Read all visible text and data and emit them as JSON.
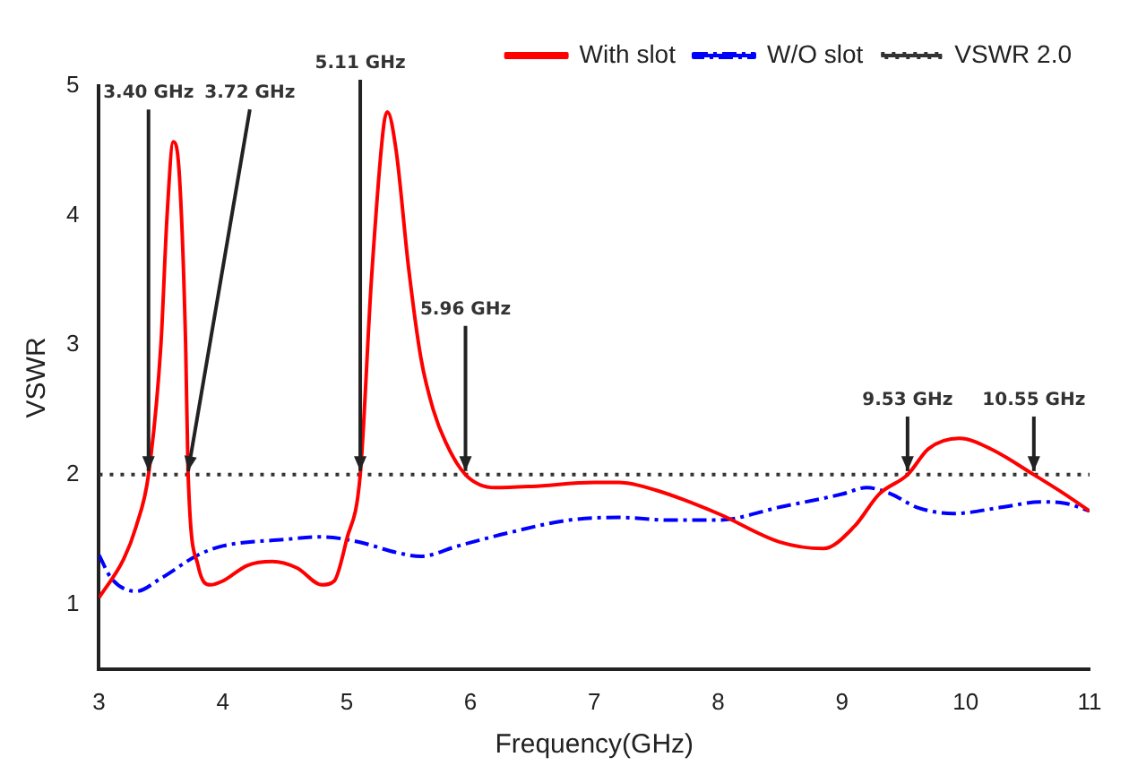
{
  "chart_data": {
    "type": "line",
    "xlabel": "Frequency(GHz)",
    "ylabel": "VSWR",
    "xlim": [
      3,
      11
    ],
    "xticks": [
      3,
      4,
      5,
      6,
      7,
      8,
      9,
      10,
      11
    ],
    "ylim": [
      0.5,
      5
    ],
    "yticks": [
      1,
      2,
      3,
      4,
      5
    ],
    "grid": false,
    "legend": "top right",
    "marker": "none",
    "series": [
      {
        "name": "With slot",
        "color": "#ff0000",
        "line_style": "solid",
        "x": [
          3.0,
          3.2,
          3.3,
          3.4,
          3.5,
          3.55,
          3.6,
          3.65,
          3.7,
          3.72,
          3.8,
          3.9,
          4.0,
          4.2,
          4.4,
          4.6,
          4.8,
          4.9,
          5.0,
          5.11,
          5.2,
          5.3,
          5.33,
          5.4,
          5.5,
          5.6,
          5.7,
          5.8,
          5.96,
          6.2,
          6.5,
          7.0,
          7.2,
          7.5,
          8.0,
          8.5,
          8.85,
          9.1,
          9.3,
          9.53,
          9.7,
          9.95,
          10.2,
          10.55,
          10.8,
          11.0
        ],
        "values": [
          1.05,
          1.35,
          1.6,
          2.0,
          3.0,
          4.0,
          4.57,
          4.3,
          3.0,
          2.0,
          1.3,
          1.15,
          1.18,
          1.3,
          1.33,
          1.28,
          1.15,
          1.18,
          1.5,
          2.0,
          3.5,
          4.7,
          4.8,
          4.5,
          3.6,
          2.9,
          2.5,
          2.25,
          2.0,
          1.9,
          1.91,
          1.94,
          1.94,
          1.88,
          1.7,
          1.48,
          1.43,
          1.6,
          1.85,
          2.0,
          2.2,
          2.28,
          2.2,
          2.0,
          1.85,
          1.72
        ]
      },
      {
        "name": "W/O slot",
        "color": "#0000ff",
        "line_style": "dashed",
        "x": [
          3.0,
          3.1,
          3.3,
          3.5,
          3.8,
          4.0,
          4.5,
          4.8,
          5.1,
          5.4,
          5.6,
          5.9,
          6.3,
          6.8,
          7.2,
          7.6,
          8.0,
          8.5,
          9.0,
          9.2,
          9.4,
          9.6,
          9.9,
          10.3,
          10.6,
          10.8,
          11.0
        ],
        "values": [
          1.38,
          1.2,
          1.1,
          1.2,
          1.38,
          1.45,
          1.5,
          1.52,
          1.48,
          1.4,
          1.37,
          1.45,
          1.55,
          1.65,
          1.67,
          1.65,
          1.65,
          1.75,
          1.85,
          1.9,
          1.85,
          1.75,
          1.7,
          1.75,
          1.79,
          1.78,
          1.72
        ]
      }
    ],
    "ref_lines": [
      {
        "axis": "y",
        "value": 2,
        "label": "VSWR 2.0",
        "color": "#333333",
        "line_style": "dotted"
      }
    ],
    "annotations": [
      {
        "text": "3.40 GHz",
        "x": 3.4,
        "y": 2
      },
      {
        "text": "3.72 GHz",
        "x": 3.72,
        "y": 2
      },
      {
        "text": "5.11 GHz",
        "x": 5.11,
        "y": 2
      },
      {
        "text": "5.96 GHz",
        "x": 5.96,
        "y": 2
      },
      {
        "text": "9.53 GHz",
        "x": 9.53,
        "y": 2
      },
      {
        "text": "10.55 GHz",
        "x": 10.55,
        "y": 2
      }
    ]
  }
}
